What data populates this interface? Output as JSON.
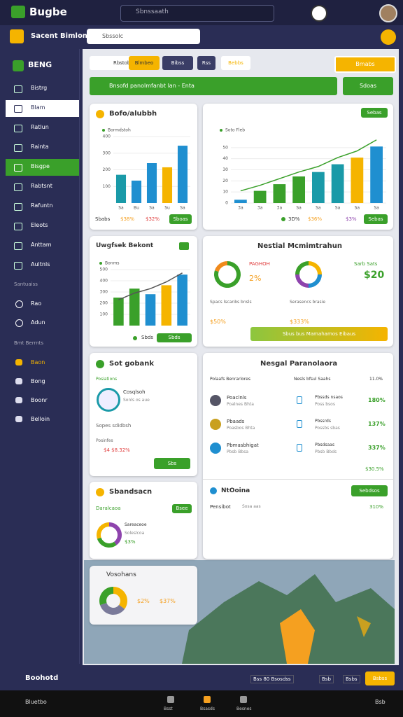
{
  "topbar": {
    "app_name": "Bugbe",
    "search_placeholder": "Sbnssaath"
  },
  "subbar": {
    "title": "Sacent Bimlont",
    "dropdown": "Sbssolc"
  },
  "sidebar": {
    "header": "BENG",
    "items": [
      "Bistrg",
      "Blam",
      "Ratlun",
      "Rainta",
      "Bisgpe",
      "Rabtsnt",
      "Rafuntn",
      "Eleots",
      "Anttam",
      "Aultnls"
    ],
    "section1": "Santuaiss",
    "items1": [
      "Rao",
      "Adun"
    ],
    "section2": "Bmt Berrnts",
    "items2": [
      "Baon",
      "Bong",
      "Boonr",
      "Belloin"
    ]
  },
  "toolbar": {
    "tabs": [
      "Rbstobs",
      "Blmbeo",
      "Bibss",
      "Rss",
      "Bebbs"
    ],
    "button": "Bmabs"
  },
  "banner": {
    "text": "Bnsofd panolmfanbt lan - Enta",
    "button": "Sdoas"
  },
  "card_sales": {
    "title": "Bofo/alubbh",
    "chart": {
      "type": "bar",
      "legend": "Bormdstoh",
      "categories": [
        "Sa",
        "Bu",
        "Sa",
        "Su",
        "Sa"
      ],
      "values": [
        170,
        135,
        240,
        215,
        345
      ],
      "colors": [
        "#1a9aa8",
        "#1f8fd0",
        "#1f8fd0",
        "#f5b400",
        "#1f8fd0"
      ],
      "ylim": [
        0,
        400
      ],
      "yticks": [
        100,
        200,
        300,
        400
      ]
    },
    "footer": [
      "Sbabs",
      "$38%",
      "$32%"
    ],
    "button": "Sboas"
  },
  "card_growth": {
    "button_top": "Sebas",
    "chart": {
      "type": "bar",
      "legend": "Soto Fleb",
      "categories": [
        "3a",
        "3a",
        "3a",
        "Sa",
        "Sa",
        "Sa",
        "Sa",
        "Sa"
      ],
      "values": [
        3,
        11,
        17,
        24,
        28,
        35,
        41,
        51
      ],
      "colors": [
        "#1f8fd0",
        "#3aa02a",
        "#3aa02a",
        "#3aa02a",
        "#1a9aa8",
        "#1a9aa8",
        "#f5b400",
        "#1f8fd0"
      ],
      "ylim": [
        0,
        60
      ],
      "yticks": [
        0,
        10,
        20,
        30,
        40,
        50
      ],
      "line": {
        "color": "#3aa02a",
        "values": [
          11,
          16,
          22,
          28,
          33,
          41,
          47,
          57
        ]
      }
    },
    "footer": [
      "3D%",
      "$36%",
      "$3%"
    ],
    "button": "Sebas"
  },
  "card_weekly": {
    "title": "Uwgfsek Bekont",
    "chart": {
      "type": "bar",
      "legend": "Bonms",
      "categories": [
        null,
        null,
        null,
        null,
        null
      ],
      "values": [
        250,
        330,
        280,
        360,
        455
      ],
      "colors": [
        "#3aa02a",
        "#3aa02a",
        "#1f8fd0",
        "#f5b400",
        "#1f8fd0"
      ],
      "ylim": [
        0,
        500
      ],
      "yticks": [
        100,
        200,
        300,
        400,
        500
      ],
      "line": {
        "color": "#555",
        "values": [
          230,
          290,
          330,
          390,
          470
        ]
      }
    },
    "footer": "Sbds",
    "button": "Sbds"
  },
  "card_metrics": {
    "title": "Nestial Mcmimtrahun",
    "donut1": {
      "type": "donut",
      "values": [
        80,
        20
      ],
      "colors": [
        "#3aa02a",
        "#f08a1c"
      ]
    },
    "donut1_label": "PAGHOH",
    "donut1_value": "2%",
    "donut2": {
      "type": "donut",
      "values": [
        25,
        25,
        25,
        25
      ],
      "colors": [
        "#f5b400",
        "#1f8fd0",
        "#8e44ad",
        "#3aa02a"
      ]
    },
    "side_label": "Sarb Sats",
    "side_value": "$20",
    "caption1": "Spacs lscanbs bnsls",
    "caption2": "Serasencs brasie",
    "value1": "$50%",
    "value2": "$333%",
    "button": "Sbus bus Mamahamos Eibaus"
  },
  "card_goal": {
    "title": "Sot gobank",
    "sub": "Posiations",
    "name": "Cosqlsoh",
    "desc": "Sonls os aue",
    "line1": "Sopes sdidbsh",
    "line2": "Posinfes",
    "stat": "$4  $8.32%",
    "button": "Sbs"
  },
  "card_list": {
    "title": "Nesgal Paranolaora",
    "header": [
      "Polaafs Benrarlores",
      "Nesls bfsul  Saahs",
      "11.0%"
    ],
    "rows": [
      {
        "name": "Poaclnls",
        "sub": "Poalnes Bhta",
        "tag": "Pbssds nsaos",
        "tag_sub": "Poss bsos",
        "value": "180%"
      },
      {
        "name": "Pbaads",
        "sub": "Poasbos Bhta",
        "tag": "Pbssrds",
        "tag_sub": "Possbs sbas",
        "value": "137%"
      },
      {
        "name": "Pbmasbhigat",
        "sub": "Pbsb Bbsa",
        "tag": "Pbsdsaas",
        "tag_sub": "Pbsb Bbds",
        "value": "337%"
      }
    ],
    "total": "$30.5%",
    "section": "NtOoina",
    "button": "Sebdsos",
    "footer_left": "Pensibot",
    "footer_mid": "Sosa aas",
    "footer_value": "310%"
  },
  "card_share": {
    "title": "Sbandsacn",
    "sub": "Daralcaoa",
    "button": "Bsee",
    "donut": {
      "type": "donut",
      "values": [
        40,
        30,
        30
      ],
      "colors": [
        "#8e44ad",
        "#3aa02a",
        "#f5b400"
      ]
    },
    "line1": "Sareaceoe",
    "line2": "Soleslcoa",
    "value": "$3%"
  },
  "card_map": {
    "title": "Vosohans",
    "donut": {
      "type": "donut",
      "values": [
        35,
        35,
        30
      ],
      "colors": [
        "#f5b400",
        "#7a7a9a",
        "#3aa02a"
      ]
    },
    "value1": "$2%",
    "value2": "$37%"
  },
  "bottombar": {
    "title": "Boohotd",
    "items": [
      "Bss 80 Bsosdss",
      "Bsb",
      "Bsbs"
    ],
    "button": "Bsbss"
  },
  "taskbar": {
    "start": "Bluetbo",
    "apps": [
      "Bsst",
      "Bsasds",
      "Besnes"
    ],
    "time": "Bsb"
  }
}
